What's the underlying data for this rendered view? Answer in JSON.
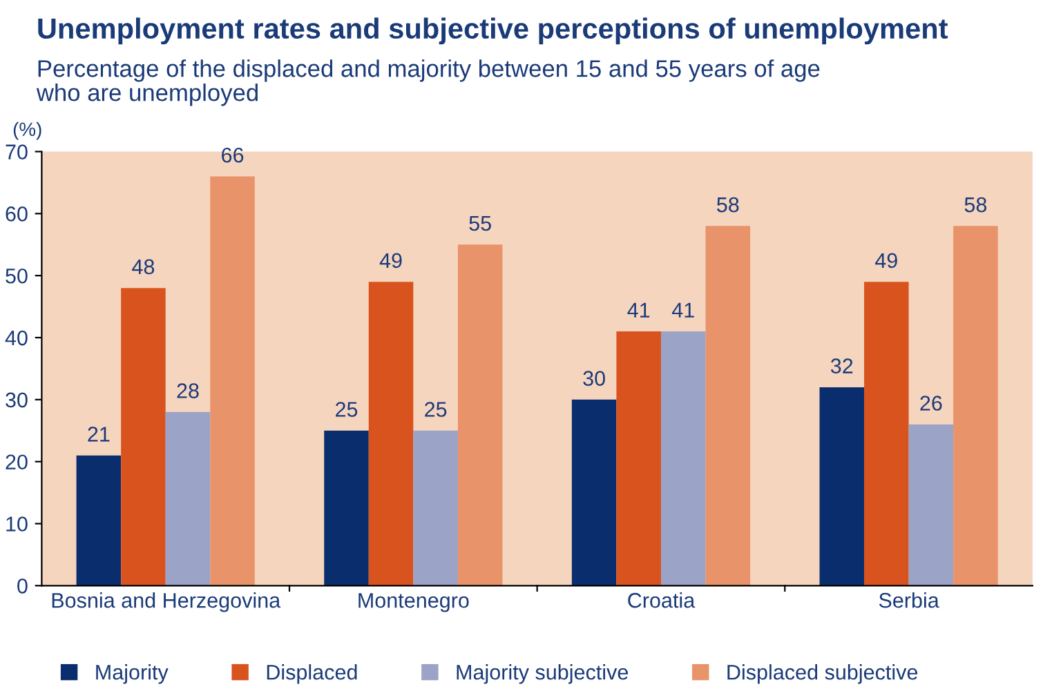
{
  "chart_data": {
    "type": "bar",
    "title": "Unemployment rates and subjective perceptions of unemployment",
    "subtitle": "Percentage of the displaced and majority between 15 and 55 years of age\nwho are unemployed",
    "ylabel": "(%)",
    "categories": [
      "Bosnia and Herzegovina",
      "Montenegro",
      "Croatia",
      "Serbia"
    ],
    "series": [
      {
        "name": "Majority",
        "color": "#0a2d6e",
        "values": [
          21,
          25,
          30,
          32
        ]
      },
      {
        "name": "Displaced",
        "color": "#d9531e",
        "values": [
          48,
          49,
          41,
          49
        ]
      },
      {
        "name": "Majority subjective",
        "color": "#9ba3c7",
        "values": [
          28,
          25,
          41,
          26
        ]
      },
      {
        "name": "Displaced subjective",
        "color": "#e9936a",
        "values": [
          66,
          55,
          58,
          58
        ]
      }
    ],
    "ylim": [
      0,
      70
    ],
    "yticks": [
      0,
      10,
      20,
      30,
      40,
      50,
      60,
      70
    ],
    "data_labels": true,
    "grid": false,
    "legend": "bottom"
  }
}
